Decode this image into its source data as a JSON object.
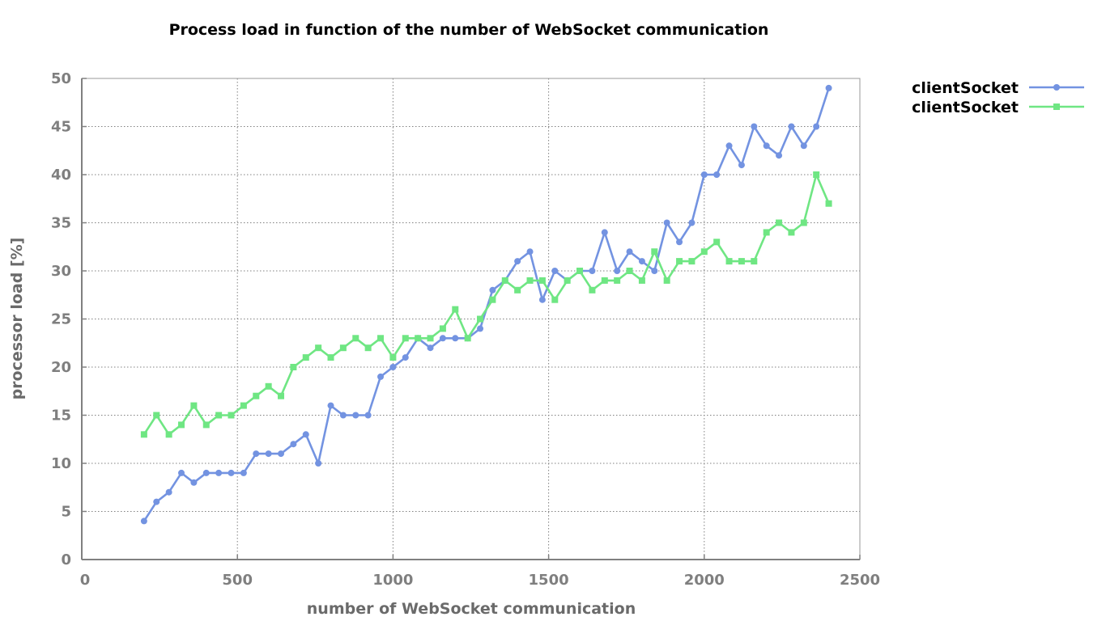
{
  "chart_data": {
    "type": "line",
    "title": "Process load in function of the number of WebSocket communication",
    "xlabel": "number of WebSocket communication",
    "ylabel": "processor load [%]",
    "xlim": [
      0,
      2500
    ],
    "ylim": [
      0,
      50
    ],
    "xticks": [
      0,
      500,
      1000,
      1500,
      2000,
      2500
    ],
    "yticks": [
      0,
      5,
      10,
      15,
      20,
      25,
      30,
      35,
      40,
      45,
      50
    ],
    "grid": true,
    "legend_position": "outside-top-right",
    "x": [
      200,
      240,
      280,
      320,
      360,
      400,
      440,
      480,
      520,
      560,
      600,
      640,
      680,
      720,
      760,
      800,
      840,
      880,
      920,
      960,
      1000,
      1040,
      1080,
      1120,
      1160,
      1200,
      1240,
      1280,
      1320,
      1360,
      1400,
      1440,
      1480,
      1520,
      1560,
      1600,
      1640,
      1680,
      1720,
      1760,
      1800,
      1840,
      1880,
      1920,
      1960,
      2000,
      2040,
      2080,
      2120,
      2160,
      2200,
      2240,
      2280,
      2320,
      2360,
      2400
    ],
    "series": [
      {
        "name": "clientSocket",
        "color": "#7393e1",
        "marker": "circle",
        "values": [
          4,
          6,
          7,
          9,
          8,
          9,
          9,
          9,
          9,
          11,
          11,
          11,
          12,
          13,
          10,
          16,
          15,
          15,
          15,
          19,
          20,
          21,
          23,
          22,
          23,
          23,
          23,
          24,
          28,
          29,
          31,
          32,
          27,
          30,
          29,
          30,
          30,
          34,
          30,
          32,
          31,
          30,
          35,
          33,
          35,
          40,
          40,
          43,
          41,
          45,
          43,
          42,
          45,
          43,
          45,
          49
        ]
      },
      {
        "name": "clientSocket",
        "color": "#6fe683",
        "marker": "square",
        "values": [
          13,
          15,
          13,
          14,
          16,
          14,
          15,
          15,
          16,
          17,
          18,
          17,
          20,
          21,
          22,
          21,
          22,
          23,
          22,
          23,
          21,
          23,
          23,
          23,
          24,
          26,
          23,
          25,
          27,
          29,
          28,
          29,
          29,
          27,
          29,
          30,
          28,
          29,
          29,
          30,
          29,
          32,
          29,
          31,
          31,
          32,
          33,
          31,
          31,
          31,
          34,
          35,
          34,
          35,
          40,
          37
        ]
      }
    ]
  }
}
